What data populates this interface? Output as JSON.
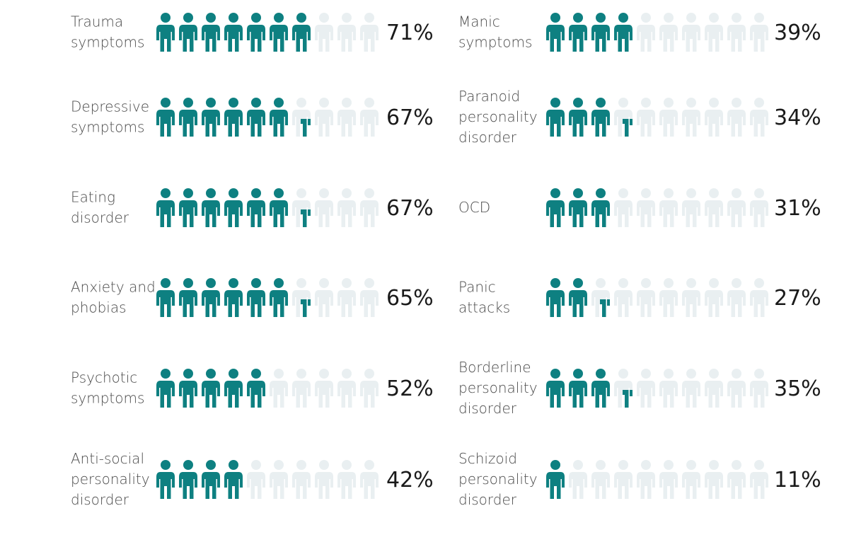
{
  "colors": {
    "filled": "#0e8081",
    "empty": "#e9eff1"
  },
  "chart_data": {
    "type": "pictograph",
    "icons_per_row": 10,
    "items": [
      {
        "label": [
          "Trauma",
          "symptoms"
        ],
        "value": 71,
        "value_label": "71%",
        "column": "left",
        "row": 0
      },
      {
        "label": [
          "Depressive",
          "symptoms"
        ],
        "value": 67,
        "value_label": "67%",
        "column": "left",
        "row": 1
      },
      {
        "label": [
          "Eating",
          "disorder"
        ],
        "value": 67,
        "value_label": "67%",
        "column": "left",
        "row": 2
      },
      {
        "label": [
          "Anxiety and",
          "phobias"
        ],
        "value": 65,
        "value_label": "65%",
        "column": "left",
        "row": 3
      },
      {
        "label": [
          "Psychotic",
          "symptoms"
        ],
        "value": 52,
        "value_label": "52%",
        "column": "left",
        "row": 4
      },
      {
        "label": [
          "Anti-social",
          "personality",
          "disorder"
        ],
        "value": 42,
        "value_label": "42%",
        "column": "left",
        "row": 5
      },
      {
        "label": [
          "Manic",
          "symptoms"
        ],
        "value": 39,
        "value_label": "39%",
        "column": "right",
        "row": 0
      },
      {
        "label": [
          "Paranoid",
          "personality",
          "disorder"
        ],
        "value": 34,
        "value_label": "34%",
        "column": "right",
        "row": 1
      },
      {
        "label": [
          "OCD"
        ],
        "value": 31,
        "value_label": "31%",
        "column": "right",
        "row": 2
      },
      {
        "label": [
          "Panic",
          "attacks"
        ],
        "value": 27,
        "value_label": "27%",
        "column": "right",
        "row": 3
      },
      {
        "label": [
          "Borderline",
          "personality",
          "disorder"
        ],
        "value": 35,
        "value_label": "35%",
        "column": "right",
        "row": 4
      },
      {
        "label": [
          "Schizoid",
          "personality",
          "disorder"
        ],
        "value": 11,
        "value_label": "11%",
        "column": "right",
        "row": 5
      }
    ]
  }
}
